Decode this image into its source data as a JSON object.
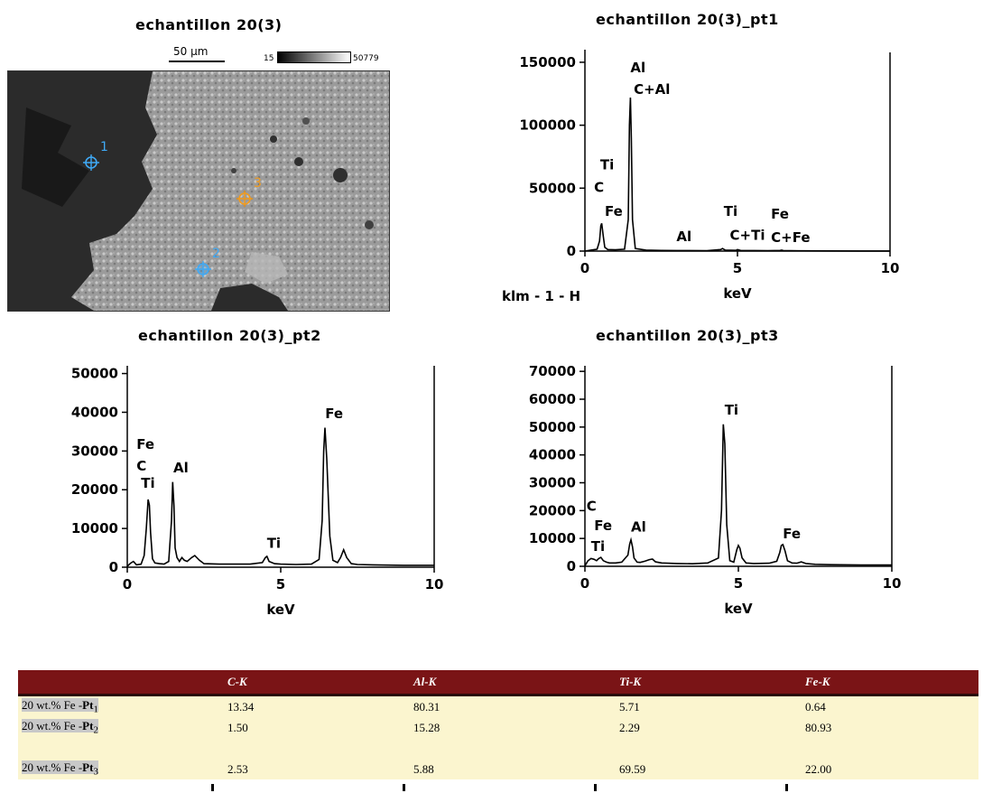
{
  "sem": {
    "title": "echantillon 20(3)",
    "scale_bar_label": "50 µm",
    "colorbar_min": "15",
    "colorbar_max": "50779",
    "points": [
      {
        "label": "1",
        "color": "#3fa9f5"
      },
      {
        "label": "2",
        "color": "#3fa9f5"
      },
      {
        "label": "3",
        "color": "#f29b1d"
      }
    ]
  },
  "chart_data": [
    {
      "type": "line",
      "title": "echantillon 20(3)_pt1",
      "xlabel": "keV",
      "caption": "klm - 1 - H",
      "xlim": [
        0,
        10
      ],
      "ylim": [
        0,
        160000
      ],
      "x_ticks": [
        "0",
        "5",
        "10"
      ],
      "y_ticks": [
        "0",
        "50000",
        "100000",
        "150000"
      ],
      "x": [
        0,
        0.2,
        0.4,
        0.48,
        0.52,
        0.55,
        0.6,
        0.65,
        0.75,
        1.0,
        1.3,
        1.42,
        1.46,
        1.49,
        1.52,
        1.56,
        1.65,
        2.0,
        2.5,
        3.0,
        4.0,
        4.45,
        4.51,
        4.6,
        4.95,
        5.0,
        5.1,
        6.0,
        6.4,
        6.45,
        6.5,
        7.0,
        8.0,
        9.0,
        10.0
      ],
      "y": [
        0,
        800,
        1500,
        8000,
        20000,
        22000,
        12000,
        3000,
        1200,
        1000,
        1500,
        25000,
        100000,
        122000,
        90000,
        25000,
        2000,
        800,
        500,
        400,
        300,
        1200,
        2000,
        800,
        600,
        1200,
        500,
        300,
        500,
        700,
        400,
        200,
        150,
        100,
        100
      ],
      "peak_labels": [
        {
          "text": "Al",
          "x": 1.49,
          "y": 142000
        },
        {
          "text": "C+Al",
          "x": 1.6,
          "y": 125000
        },
        {
          "text": "Ti",
          "x": 0.5,
          "y": 65000
        },
        {
          "text": "C",
          "x": 0.3,
          "y": 47000
        },
        {
          "text": "Fe",
          "x": 0.65,
          "y": 28000
        },
        {
          "text": "Al",
          "x": 3.0,
          "y": 8000
        },
        {
          "text": "Ti",
          "x": 4.55,
          "y": 28000
        },
        {
          "text": "C+Ti",
          "x": 4.75,
          "y": 9000
        },
        {
          "text": "Fe",
          "x": 6.1,
          "y": 26000
        },
        {
          "text": "C+Fe",
          "x": 6.1,
          "y": 7000
        }
      ]
    },
    {
      "type": "line",
      "title": "echantillon 20(3)_pt2",
      "xlabel": "keV",
      "xlim": [
        0,
        10
      ],
      "ylim": [
        0,
        52000
      ],
      "x_ticks": [
        "0",
        "5",
        "10"
      ],
      "y_ticks": [
        "0",
        "10000",
        "20000",
        "30000",
        "40000",
        "50000"
      ],
      "x": [
        0,
        0.1,
        0.2,
        0.3,
        0.45,
        0.55,
        0.62,
        0.68,
        0.72,
        0.76,
        0.82,
        0.9,
        1.05,
        1.2,
        1.35,
        1.44,
        1.48,
        1.52,
        1.56,
        1.62,
        1.7,
        1.78,
        1.86,
        1.95,
        2.1,
        2.2,
        2.35,
        2.5,
        3.0,
        3.5,
        4.0,
        4.4,
        4.5,
        4.55,
        4.62,
        4.8,
        5.0,
        5.5,
        6.0,
        6.25,
        6.35,
        6.4,
        6.44,
        6.5,
        6.6,
        6.7,
        6.85,
        6.95,
        7.05,
        7.15,
        7.3,
        7.5,
        8.0,
        9.0,
        10.0
      ],
      "y": [
        200,
        1000,
        1500,
        600,
        800,
        3000,
        10000,
        17500,
        16000,
        9000,
        2200,
        1100,
        900,
        800,
        1500,
        12000,
        22000,
        16000,
        5000,
        2500,
        1500,
        2500,
        1800,
        1500,
        2500,
        3000,
        1800,
        900,
        800,
        800,
        800,
        1200,
        2500,
        2800,
        1500,
        900,
        800,
        700,
        800,
        2000,
        12000,
        30000,
        36000,
        28000,
        8000,
        1800,
        1200,
        2500,
        4500,
        2500,
        900,
        700,
        600,
        500,
        500
      ],
      "peak_labels": [
        {
          "text": "Fe",
          "x": 0.3,
          "y": 30500
        },
        {
          "text": "C",
          "x": 0.3,
          "y": 25000
        },
        {
          "text": "Ti",
          "x": 0.45,
          "y": 20500
        },
        {
          "text": "Al",
          "x": 1.5,
          "y": 24500
        },
        {
          "text": "Ti",
          "x": 4.55,
          "y": 5000
        },
        {
          "text": "Fe",
          "x": 6.45,
          "y": 38500
        }
      ]
    },
    {
      "type": "line",
      "title": "echantillon 20(3)_pt3",
      "xlabel": "keV",
      "xlim": [
        0,
        10
      ],
      "ylim": [
        0,
        72000
      ],
      "x_ticks": [
        "0",
        "5",
        "10"
      ],
      "y_ticks": [
        "0",
        "10000",
        "20000",
        "30000",
        "40000",
        "50000",
        "60000",
        "70000"
      ],
      "x": [
        0,
        0.1,
        0.2,
        0.3,
        0.38,
        0.45,
        0.52,
        0.6,
        0.7,
        0.8,
        1.0,
        1.2,
        1.4,
        1.46,
        1.5,
        1.55,
        1.6,
        1.7,
        1.8,
        1.95,
        2.1,
        2.2,
        2.3,
        2.5,
        3.0,
        3.5,
        4.0,
        4.35,
        4.45,
        4.51,
        4.56,
        4.62,
        4.72,
        4.85,
        4.95,
        5.0,
        5.05,
        5.12,
        5.25,
        5.5,
        6.0,
        6.25,
        6.35,
        6.4,
        6.45,
        6.52,
        6.6,
        6.75,
        6.9,
        7.05,
        7.2,
        7.5,
        8.0,
        9.0,
        10.0
      ],
      "y": [
        200,
        2000,
        2800,
        2500,
        2000,
        2800,
        3200,
        2000,
        1500,
        1200,
        1200,
        1500,
        4000,
        8000,
        9500,
        7000,
        3000,
        1500,
        1400,
        1800,
        2400,
        2600,
        1600,
        1200,
        1000,
        900,
        1200,
        3000,
        20000,
        51000,
        44000,
        15000,
        2000,
        1500,
        6000,
        7500,
        6500,
        3000,
        1200,
        1000,
        1100,
        1800,
        5000,
        7500,
        7800,
        5500,
        2000,
        1200,
        1100,
        1600,
        1000,
        700,
        600,
        500,
        500
      ],
      "peak_labels": [
        {
          "text": "C",
          "x": 0.05,
          "y": 20000
        },
        {
          "text": "Fe",
          "x": 0.3,
          "y": 13000
        },
        {
          "text": "Ti",
          "x": 0.2,
          "y": 5500
        },
        {
          "text": "Al",
          "x": 1.5,
          "y": 12500
        },
        {
          "text": "Ti",
          "x": 4.55,
          "y": 54500
        },
        {
          "text": "Fe",
          "x": 6.45,
          "y": 10000
        }
      ]
    }
  ],
  "table": {
    "headers": [
      "",
      "C-K",
      "Al-K",
      "Ti-K",
      "Fe-K"
    ],
    "rows": [
      {
        "label_prefix": "20 wt.% Fe -",
        "label_point": "Pt",
        "label_sub": "1",
        "values": [
          "13.34",
          "80.31",
          "5.71",
          "0.64"
        ]
      },
      {
        "label_prefix": "20 wt.% Fe -",
        "label_point": "Pt",
        "label_sub": "2",
        "values": [
          "1.50",
          "15.28",
          "2.29",
          "80.93"
        ]
      },
      {
        "label_prefix": "",
        "label_point": "",
        "label_sub": "",
        "values": [
          "",
          "",
          "",
          ""
        ]
      },
      {
        "label_prefix": "20 wt.% Fe -",
        "label_point": "Pt",
        "label_sub": "3",
        "values": [
          "2.53",
          "5.88",
          "69.59",
          "22.00"
        ]
      }
    ]
  }
}
